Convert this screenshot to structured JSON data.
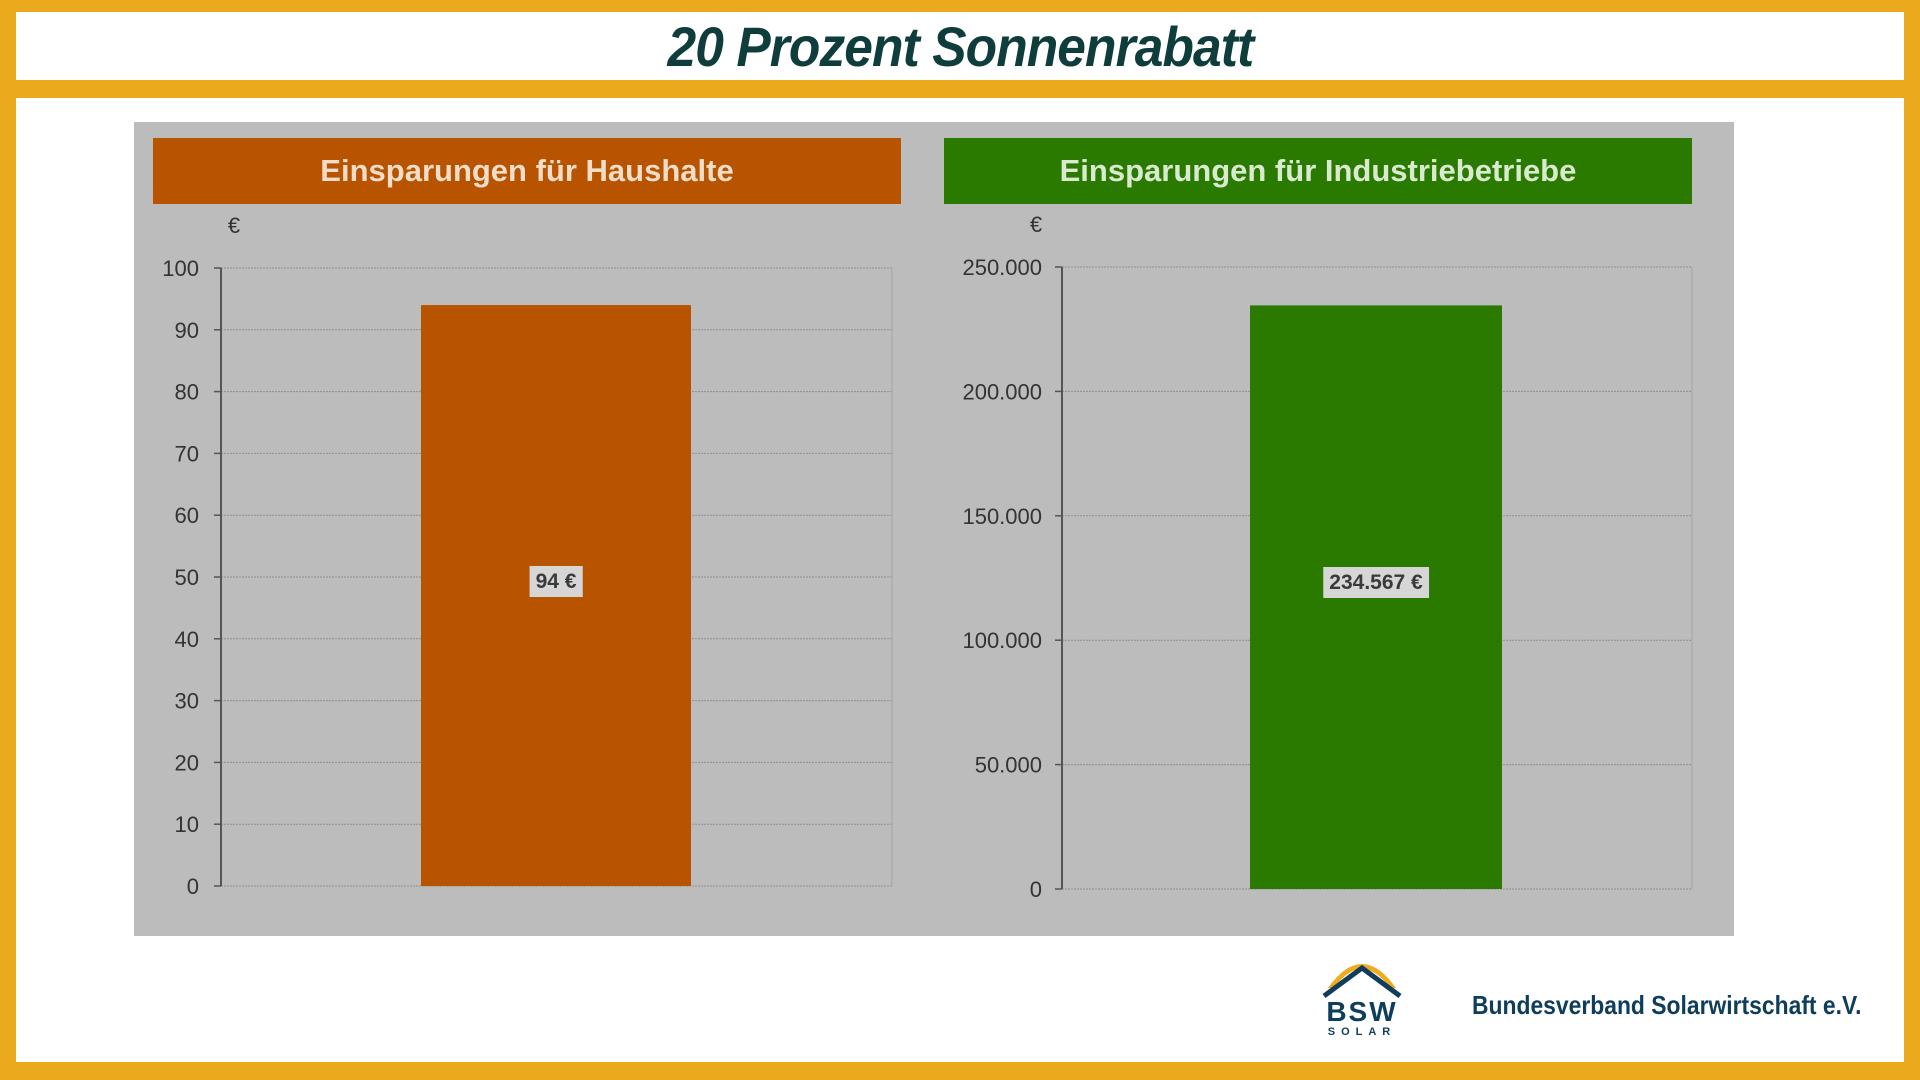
{
  "page": {
    "title": "20 Prozent Sonnenrabatt",
    "frame_color": "#ebaa1d",
    "title_color": "#0f3d3b"
  },
  "footer": {
    "logo_main": "BSW",
    "logo_sub": "SOLAR",
    "organization": "Bundesverband Solarwirtschaft e.V.",
    "logo_icon": "sun-arc-roof-icon"
  },
  "chart_data": [
    {
      "type": "bar",
      "title": "Einsparungen für Haushalte",
      "unit_label": "€",
      "categories": [
        ""
      ],
      "values": [
        94
      ],
      "data_label": "94 €",
      "ylim": [
        0,
        100
      ],
      "yticks": [
        0,
        10,
        20,
        30,
        40,
        50,
        60,
        70,
        80,
        90,
        100
      ],
      "ytick_labels": [
        "0",
        "10",
        "20",
        "30",
        "40",
        "50",
        "60",
        "70",
        "80",
        "90",
        "100"
      ],
      "grid": true,
      "color": "#b85300"
    },
    {
      "type": "bar",
      "title": "Einsparungen für Industriebetriebe",
      "unit_label": "€",
      "categories": [
        ""
      ],
      "values": [
        234567
      ],
      "data_label": "234.567 €",
      "ylim": [
        0,
        250000
      ],
      "yticks": [
        0,
        50000,
        100000,
        150000,
        200000,
        250000
      ],
      "ytick_labels": [
        "0",
        "50.000",
        "100.000",
        "150.000",
        "200.000",
        "250.000"
      ],
      "grid": true,
      "color": "#2b7a00"
    }
  ]
}
